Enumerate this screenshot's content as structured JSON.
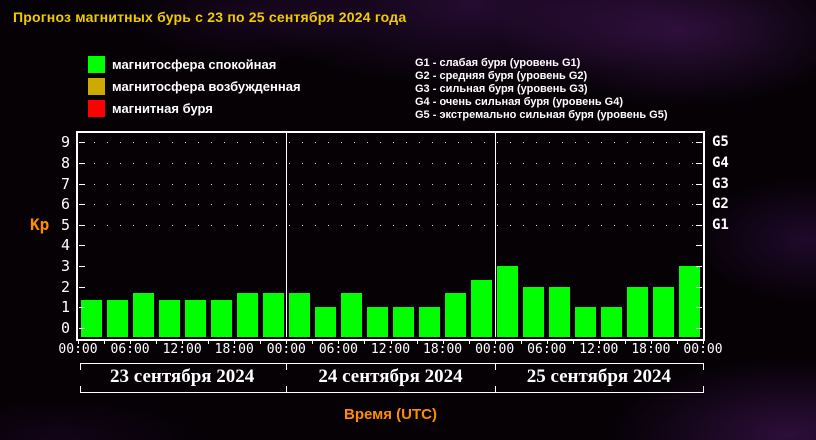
{
  "title": "Прогноз магнитных бурь с 23 по 25 сентября 2024 года",
  "colors": {
    "background": "#050105",
    "title_yellow": "#f0cc00",
    "accent_orange": "#ff8c00",
    "axis_white": "#ffffff",
    "quiet_green": "#00ff00",
    "excited_yellow": "#ccaa00",
    "storm_red": "#ff0000"
  },
  "legend": {
    "items": [
      {
        "label": "магнитосфера спокойная",
        "color": "#00ff00"
      },
      {
        "label": "магнитосфера возбужденная",
        "color": "#ccaa00"
      },
      {
        "label": "магнитная буря",
        "color": "#ff0000"
      }
    ]
  },
  "storm_levels": [
    "G1 - слабая буря (уровень G1)",
    "G2 - средняя буря (уровень G2)",
    "G3 - сильная буря (уровень G3)",
    "G4 - очень сильная буря (уровень G4)",
    "G5 - экстремально сильная буря (уровень G5)"
  ],
  "chart_data": {
    "type": "bar",
    "title": "Прогноз магнитных бурь с 23 по 25 сентября 2024 года",
    "ylabel": "Kp",
    "xlabel": "Время (UTC)",
    "ylim": [
      -0.5,
      9.5
    ],
    "y_ticks": [
      0,
      1,
      2,
      3,
      4,
      5,
      6,
      7,
      8,
      9
    ],
    "right_axis": [
      {
        "kp": 5,
        "label": "G1"
      },
      {
        "kp": 6,
        "label": "G2"
      },
      {
        "kp": 7,
        "label": "G3"
      },
      {
        "kp": 8,
        "label": "G4"
      },
      {
        "kp": 9,
        "label": "G5"
      }
    ],
    "grid_dotted_at": [
      5,
      6,
      7,
      8,
      9
    ],
    "x_tick_interval_hours": 3,
    "x_time_labels": [
      "00:00",
      "06:00",
      "12:00",
      "18:00",
      "00:00",
      "06:00",
      "12:00",
      "18:00",
      "00:00",
      "06:00",
      "12:00",
      "18:00",
      "00:00"
    ],
    "bar_color": "#00ff00",
    "bars_per_day": 8,
    "days": [
      {
        "date": "23 сентября 2024",
        "values": [
          1.33,
          1.33,
          1.67,
          1.33,
          1.33,
          1.33,
          1.67,
          1.67
        ]
      },
      {
        "date": "24 сентября 2024",
        "values": [
          1.67,
          1.0,
          1.67,
          1.0,
          1.0,
          1.0,
          1.67,
          2.33
        ]
      },
      {
        "date": "25 сентября 2024",
        "values": [
          3.0,
          2.0,
          2.0,
          1.0,
          1.0,
          2.0,
          2.0,
          3.0
        ]
      }
    ]
  }
}
